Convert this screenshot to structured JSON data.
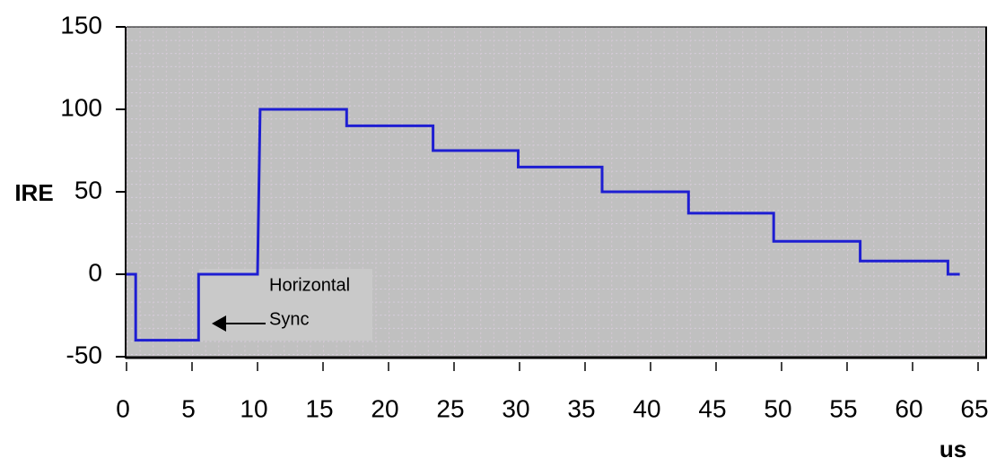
{
  "chart_data": {
    "type": "line",
    "y_label": "IRE",
    "x_label": "us",
    "annotation": [
      "Horizontal",
      "Sync"
    ],
    "x": [
      0,
      0.7,
      0.7,
      5.5,
      5.5,
      10,
      10.2,
      16.8,
      16.8,
      23.4,
      23.4,
      29.9,
      29.9,
      36.3,
      36.3,
      42.9,
      42.9,
      49.4,
      49.4,
      56,
      56,
      62.7,
      62.7,
      63.6
    ],
    "values": [
      0,
      0,
      -40,
      -40,
      0,
      0,
      100,
      100,
      90,
      90,
      75,
      75,
      65,
      65,
      50,
      50,
      37,
      37,
      20,
      20,
      8,
      8,
      0,
      0
    ],
    "color": "#1e1ed2",
    "xlim": [
      0,
      65
    ],
    "xticks": [
      0,
      5,
      10,
      15,
      20,
      25,
      30,
      35,
      40,
      45,
      50,
      55,
      60,
      65
    ],
    "ylim": [
      -50,
      150
    ],
    "yticks": [
      -50,
      0,
      50,
      100,
      150
    ],
    "grid": true
  }
}
